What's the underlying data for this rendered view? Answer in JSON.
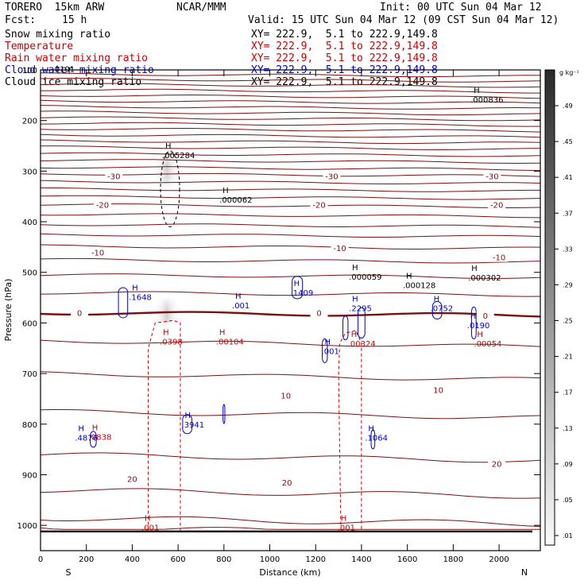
{
  "header": {
    "model": "TORERO  15km ARW",
    "org": "NCAR/MMM",
    "init": "Init: 00 UTC Sun 04 Mar 12",
    "fcst_label": "Fcst:",
    "fcst_value": "15 h",
    "valid": "Valid: 15 UTC Sun 04 Mar 12 (09 CST Sun 04 Mar 12)"
  },
  "fields": [
    {
      "label": "Snow mixing ratio",
      "xy": "XY= 222.9,  5.1 to 222.9,149.8",
      "color": "#000000"
    },
    {
      "label": "Temperature",
      "xy": "XY= 222.9,  5.1 to 222.9,149.8",
      "color": "#cc0000"
    },
    {
      "label": "Rain water mixing ratio",
      "xy": "XY= 222.9,  5.1 to 222.9,149.8",
      "color": "#cc0000"
    },
    {
      "label": "Cloud water mixing ratio",
      "xy": "XY= 222.9,  5.1 to 222.9,149.8",
      "color": "#0000cc"
    },
    {
      "label": "Cloud ice mixing ratio",
      "xy": "XY= 222.9,  5.1 to 222.9,149.8",
      "color": "#000000"
    }
  ],
  "colorbar": {
    "unit": "g kg⁻¹",
    "ticks": [
      ".01",
      ".05",
      ".09",
      ".13",
      ".17",
      ".21",
      ".25",
      ".29",
      ".33",
      ".37",
      ".41",
      ".45",
      ".49"
    ]
  },
  "chart_data": {
    "type": "vertical cross-section",
    "xlabel": "Distance (km)",
    "ylabel": "Pressure (hPa)",
    "xlim": [
      0,
      2180
    ],
    "ylim": [
      1050,
      100
    ],
    "x_ticks": [
      0,
      200,
      400,
      600,
      800,
      1000,
      1200,
      1400,
      1600,
      1800,
      2000
    ],
    "y_ticks": [
      100,
      200,
      300,
      400,
      500,
      600,
      700,
      800,
      900,
      1000
    ],
    "left_end_label": "S",
    "right_end_label": "N",
    "temperature_contour_labels": [
      {
        "text": "-30",
        "x": 320,
        "p": 310
      },
      {
        "text": "-30",
        "x": 1270,
        "p": 310
      },
      {
        "text": "-30",
        "x": 1970,
        "p": 310
      },
      {
        "text": "-20",
        "x": 270,
        "p": 366
      },
      {
        "text": "-20",
        "x": 1215,
        "p": 366
      },
      {
        "text": "-20",
        "x": 1990,
        "p": 366
      },
      {
        "text": "-10",
        "x": 250,
        "p": 460
      },
      {
        "text": "-10",
        "x": 1305,
        "p": 452
      },
      {
        "text": "-10",
        "x": 2000,
        "p": 470
      },
      {
        "text": "0",
        "x": 170,
        "p": 580
      },
      {
        "text": "0",
        "x": 1215,
        "p": 580
      },
      {
        "text": "0",
        "x": 1940,
        "p": 585
      },
      {
        "text": "10",
        "x": 1070,
        "p": 743
      },
      {
        "text": "10",
        "x": 1735,
        "p": 732
      },
      {
        "text": "20",
        "x": 400,
        "p": 908
      },
      {
        "text": "20",
        "x": 1075,
        "p": 915
      },
      {
        "text": "20",
        "x": 1990,
        "p": 878
      }
    ],
    "temperature_isotherms_pressure_at_x0": [
      1005,
      985,
      930,
      860,
      775,
      700,
      635,
      580,
      540,
      505,
      475,
      448,
      425,
      405,
      385,
      366,
      350,
      335,
      320,
      305,
      292,
      278,
      265,
      252,
      240,
      228,
      216,
      205,
      194,
      183,
      172,
      161,
      150,
      139,
      128,
      118,
      108
    ],
    "snow_max_labels": [
      {
        "text": ".005284",
        "x": 565,
        "p": 268
      },
      {
        "text": ".000062",
        "x": 815,
        "p": 356
      },
      {
        "text": ".000059",
        "x": 1380,
        "p": 508
      },
      {
        "text": ".000128",
        "x": 1615,
        "p": 525
      },
      {
        "text": ".000302",
        "x": 1900,
        "p": 510
      },
      {
        "text": ".000836",
        "x": 1910,
        "p": 158
      }
    ],
    "rain_max_labels": [
      {
        "text": ".0398",
        "x": 555,
        "p": 636
      },
      {
        "text": ".00104",
        "x": 800,
        "p": 636
      },
      {
        "text": ".00324",
        "x": 1375,
        "p": 640
      },
      {
        "text": ".00054",
        "x": 1925,
        "p": 640
      },
      {
        "text": ".001",
        "x": 475,
        "p": 1004
      },
      {
        "text": ".001",
        "x": 1330,
        "p": 1004
      },
      {
        "text": ".0838",
        "x": 245,
        "p": 825
      }
    ],
    "cloud_water_max_labels": [
      {
        "text": ".1648",
        "x": 420,
        "p": 548
      },
      {
        "text": ".1409",
        "x": 1125,
        "p": 540
      },
      {
        "text": ".001",
        "x": 870,
        "p": 565
      },
      {
        "text": ".2295",
        "x": 1380,
        "p": 570
      },
      {
        "text": ".0752",
        "x": 1735,
        "p": 570
      },
      {
        "text": ".0190",
        "x": 1895,
        "p": 604
      },
      {
        "text": ".001",
        "x": 1260,
        "p": 655
      },
      {
        "text": ".3941",
        "x": 650,
        "p": 800
      },
      {
        "text": ".1064",
        "x": 1450,
        "p": 826
      },
      {
        "text": ".4876",
        "x": 185,
        "p": 826
      }
    ],
    "cloud_ice_max_labels": [
      {
        "text": ".0101",
        "x": 100,
        "p": 88
      }
    ],
    "dashed_freezing_level_hPa": 580,
    "surface_pressure_hPa": 1012
  }
}
